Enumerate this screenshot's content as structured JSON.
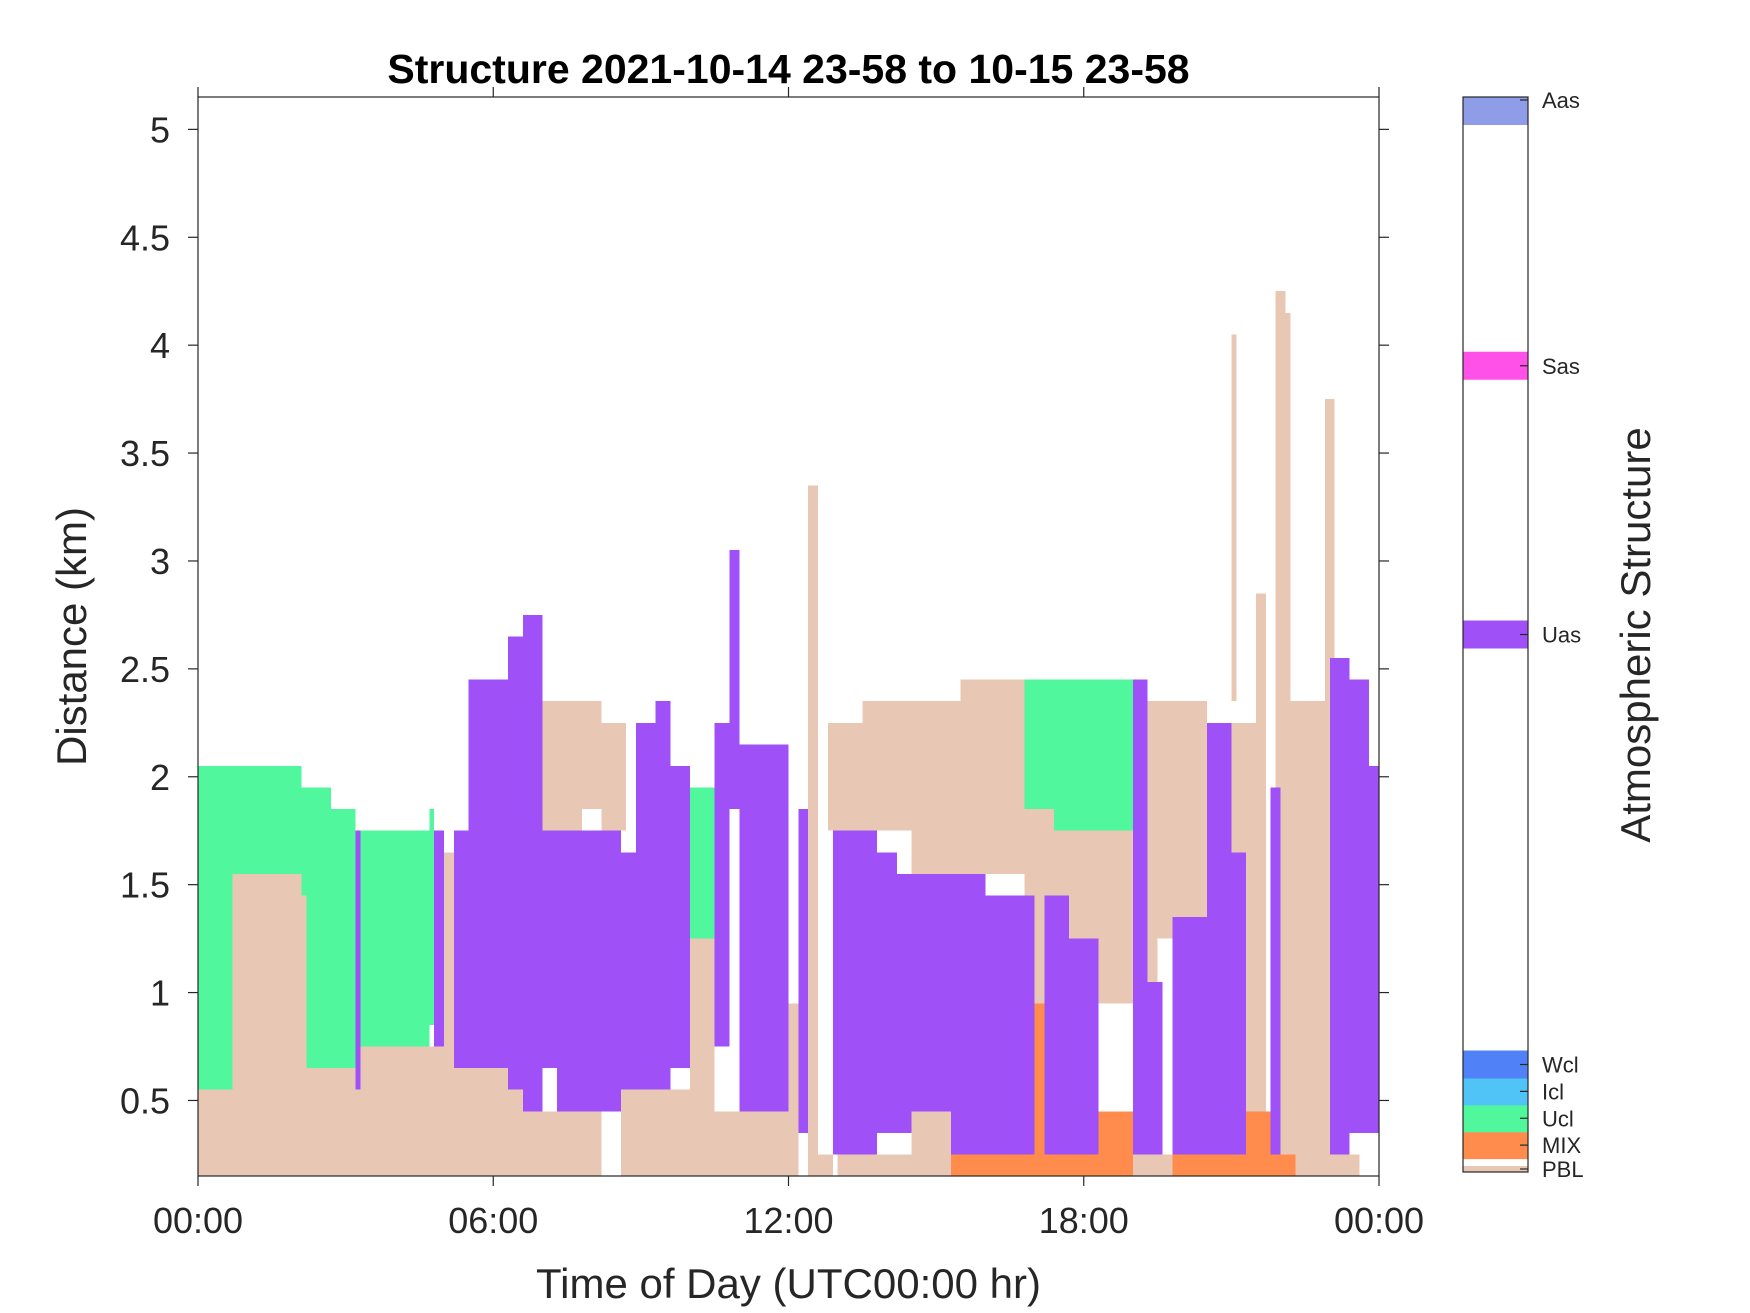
{
  "chart_data": {
    "type": "heatmap",
    "title": "Structure 2021-10-14 23-58 to 10-15 23-58",
    "xlabel": "Time of Day (UTC00:00 hr)",
    "ylabel": "Distance (km)",
    "xlim": [
      0,
      24
    ],
    "ylim": [
      0.15,
      5.15
    ],
    "x_ticks": [
      0,
      6,
      12,
      18,
      24
    ],
    "x_tick_labels": [
      "00:00",
      "06:00",
      "12:00",
      "18:00",
      "00:00"
    ],
    "y_ticks": [
      0.5,
      1,
      1.5,
      2,
      2.5,
      3,
      3.5,
      4,
      4.5,
      5
    ],
    "y_tick_labels": [
      "0.5",
      "1",
      "1.5",
      "2",
      "2.5",
      "3",
      "3.5",
      "4",
      "4.5",
      "5"
    ],
    "grid": false,
    "colorbar": {
      "label": "Atmospheric Structure",
      "categories": [
        {
          "name": "PBL",
          "color": "#E8C8B4"
        },
        {
          "name": "MIX",
          "color": "#FF8C4C"
        },
        {
          "name": "Ucl",
          "color": "#50F79C"
        },
        {
          "name": "Icl",
          "color": "#50C3F7"
        },
        {
          "name": "Wcl",
          "color": "#5081F7"
        },
        {
          "name": "Uas",
          "color": "#A050F7"
        },
        {
          "name": "Sas",
          "color": "#FF50E8"
        },
        {
          "name": "Aas",
          "color": "#8F9CE8"
        }
      ]
    },
    "series": [
      {
        "name": "PBL",
        "color": "#E8C8B4",
        "segments": [
          [
            0,
            0.7,
            0.15,
            0.55
          ],
          [
            0.7,
            2.1,
            0.15,
            1.55
          ],
          [
            2.1,
            2.2,
            0.15,
            1.45
          ],
          [
            2.2,
            2.7,
            0.15,
            0.7
          ],
          [
            2.7,
            3.6,
            0.15,
            0.75
          ],
          [
            3.6,
            4.4,
            0.15,
            0.85
          ],
          [
            4.4,
            5.0,
            0.15,
            0.75
          ],
          [
            5.0,
            6.2,
            0.15,
            0.65
          ],
          [
            5.0,
            5.2,
            0.15,
            1.65
          ],
          [
            6.2,
            7.0,
            0.15,
            0.55
          ],
          [
            6.2,
            7.0,
            0.55,
            1.75
          ],
          [
            7.0,
            7.2,
            0.15,
            0.45
          ],
          [
            7.0,
            7.8,
            1.75,
            2.35
          ],
          [
            7.2,
            7.8,
            0.15,
            0.45
          ],
          [
            7.8,
            8.2,
            0.15,
            0.45
          ],
          [
            7.8,
            8.2,
            1.85,
            2.35
          ],
          [
            8.2,
            8.7,
            1.75,
            2.25
          ],
          [
            8.6,
            9.0,
            0.15,
            1.65
          ],
          [
            9.0,
            10.0,
            0.15,
            0.55
          ],
          [
            10.0,
            10.5,
            0.15,
            1.25
          ],
          [
            10.5,
            11.2,
            0.15,
            0.45
          ],
          [
            11.2,
            11.9,
            0.15,
            0.45
          ],
          [
            11.9,
            12.2,
            0.15,
            0.95
          ],
          [
            12.4,
            12.6,
            0.15,
            3.35
          ],
          [
            12.6,
            12.9,
            0.15,
            0.25
          ],
          [
            12.8,
            13.5,
            1.75,
            2.25
          ],
          [
            13.0,
            13.5,
            0.15,
            0.25
          ],
          [
            13.5,
            14.5,
            0.15,
            0.25
          ],
          [
            13.5,
            14.5,
            1.75,
            2.35
          ],
          [
            14.5,
            15.5,
            0.15,
            0.45
          ],
          [
            14.5,
            15.5,
            1.55,
            2.35
          ],
          [
            15.5,
            17.5,
            0.15,
            0.35
          ],
          [
            15.5,
            16.8,
            1.55,
            2.45
          ],
          [
            16.8,
            19.0,
            1.85,
            2.35
          ],
          [
            16.8,
            18.0,
            0.95,
            1.85
          ],
          [
            18.0,
            19.5,
            0.95,
            2.35
          ],
          [
            19.0,
            20.5,
            0.15,
            0.25
          ],
          [
            19.5,
            20.5,
            1.25,
            2.35
          ],
          [
            20.5,
            21.5,
            0.15,
            2.25
          ],
          [
            21.0,
            21.1,
            2.35,
            4.05
          ],
          [
            21.5,
            21.7,
            0.15,
            2.85
          ],
          [
            21.9,
            22.1,
            0.15,
            4.25
          ],
          [
            22.1,
            22.2,
            0.15,
            4.15
          ],
          [
            22.2,
            22.6,
            0.15,
            2.35
          ],
          [
            22.6,
            23.2,
            0.15,
            2.35
          ],
          [
            22.9,
            23.1,
            2.35,
            3.75
          ],
          [
            23.0,
            23.6,
            0.15,
            0.25
          ]
        ]
      },
      {
        "name": "MIX",
        "color": "#FF8C4C",
        "segments": [
          [
            15.3,
            16.6,
            0.15,
            0.25
          ],
          [
            16.6,
            17.2,
            0.15,
            0.95
          ],
          [
            17.2,
            18.2,
            0.15,
            0.55
          ],
          [
            18.2,
            19.0,
            0.15,
            0.45
          ],
          [
            19.8,
            20.5,
            0.15,
            0.95
          ],
          [
            20.5,
            21.8,
            0.15,
            0.45
          ],
          [
            21.8,
            22.3,
            0.15,
            0.25
          ]
        ]
      },
      {
        "name": "Ucl",
        "color": "#50F79C",
        "segments": [
          [
            0,
            0.7,
            0.55,
            2.05
          ],
          [
            0.7,
            1.0,
            1.55,
            2.05
          ],
          [
            1.0,
            2.1,
            1.55,
            2.05
          ],
          [
            2.1,
            2.7,
            1.45,
            1.95
          ],
          [
            2.2,
            2.7,
            0.65,
            1.45
          ],
          [
            2.7,
            3.2,
            0.65,
            1.85
          ],
          [
            3.2,
            4.7,
            0.75,
            1.75
          ],
          [
            4.7,
            4.8,
            0.85,
            1.85
          ],
          [
            10.0,
            10.5,
            1.25,
            1.95
          ],
          [
            16.8,
            19.0,
            1.85,
            2.45
          ],
          [
            17.4,
            19.0,
            1.75,
            1.85
          ]
        ]
      },
      {
        "name": "Uas",
        "color": "#A050F7",
        "segments": [
          [
            3.2,
            3.3,
            0.55,
            1.75
          ],
          [
            4.8,
            5.0,
            0.75,
            1.75
          ],
          [
            5.2,
            5.5,
            0.65,
            1.75
          ],
          [
            5.5,
            6.3,
            0.65,
            2.45
          ],
          [
            6.3,
            6.6,
            0.55,
            2.65
          ],
          [
            6.6,
            7.0,
            0.45,
            2.75
          ],
          [
            7.0,
            7.3,
            0.65,
            1.75
          ],
          [
            7.3,
            8.2,
            0.45,
            1.75
          ],
          [
            8.2,
            8.6,
            0.45,
            1.75
          ],
          [
            8.6,
            8.9,
            0.55,
            1.65
          ],
          [
            8.9,
            9.3,
            0.55,
            2.25
          ],
          [
            9.3,
            9.6,
            0.55,
            2.35
          ],
          [
            9.6,
            10.0,
            0.65,
            2.05
          ],
          [
            10.5,
            10.8,
            0.75,
            2.25
          ],
          [
            10.8,
            11.0,
            1.85,
            3.05
          ],
          [
            11.0,
            12.0,
            0.45,
            2.15
          ],
          [
            12.2,
            12.4,
            0.35,
            1.85
          ],
          [
            12.9,
            13.8,
            0.25,
            1.75
          ],
          [
            13.8,
            14.2,
            0.35,
            1.65
          ],
          [
            14.2,
            14.5,
            0.35,
            1.55
          ],
          [
            14.5,
            15.3,
            0.45,
            1.55
          ],
          [
            15.3,
            16.0,
            0.25,
            1.55
          ],
          [
            16.0,
            16.7,
            0.25,
            1.45
          ],
          [
            16.7,
            17.0,
            0.25,
            1.45
          ],
          [
            17.2,
            17.7,
            0.25,
            1.45
          ],
          [
            17.7,
            18.3,
            0.25,
            1.25
          ],
          [
            19.0,
            19.3,
            0.25,
            2.45
          ],
          [
            19.3,
            19.6,
            0.25,
            1.05
          ],
          [
            19.8,
            20.5,
            0.25,
            1.35
          ],
          [
            20.5,
            21.0,
            0.25,
            2.25
          ],
          [
            21.0,
            21.3,
            0.25,
            1.65
          ],
          [
            21.8,
            22.0,
            0.25,
            1.95
          ],
          [
            23.0,
            23.4,
            0.25,
            2.55
          ],
          [
            23.4,
            23.8,
            0.35,
            2.45
          ],
          [
            23.8,
            24.0,
            0.35,
            2.05
          ]
        ]
      }
    ]
  }
}
